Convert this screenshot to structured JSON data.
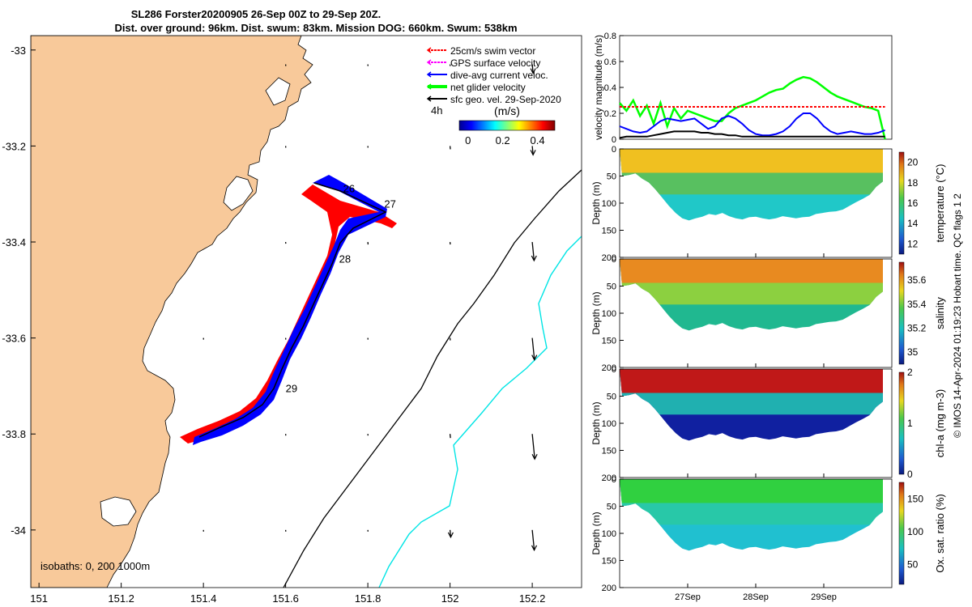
{
  "header": {
    "title_line1": "SL286 Forster20200905 26-Sep 00Z to 29-Sep 20Z.",
    "title_line2": "Dist. over ground: 96km. Dist. swum: 83km. Mission DOG: 660km. Swum: 538km"
  },
  "footer_note": "© IMOS 14-Apr-2024 01:19:23 Hobart time. QC flags 1  2",
  "map": {
    "xticks": [
      "151",
      "151.2",
      "151.4",
      "151.6",
      "151.8",
      "152",
      "152.2"
    ],
    "yticks": [
      "-33",
      "-33.2",
      "-33.4",
      "-33.6",
      "-33.8",
      "-34"
    ],
    "xlim": [
      150.98,
      152.32
    ],
    "ylim": [
      -34.12,
      -32.97
    ],
    "isobath_label": "isobaths: 0, 200  1000m",
    "time_marker": "4h",
    "day_labels": [
      {
        "text": "26",
        "lon": 151.74,
        "lat": -33.296
      },
      {
        "text": "27",
        "lon": 151.84,
        "lat": -33.328
      },
      {
        "text": "28",
        "lon": 151.73,
        "lat": -33.443
      },
      {
        "text": "29",
        "lon": 151.6,
        "lat": -33.713
      }
    ],
    "legend": [
      {
        "label": "25cm/s swim vector",
        "color": "#ff0000"
      },
      {
        "label": "GPS surface velocity",
        "color": "#ff00ff"
      },
      {
        "label": "dive-avg current veloc.",
        "color": "#0000ff"
      },
      {
        "label": "net glider velocity",
        "color": "#00ff00"
      },
      {
        "label": "sfc geo. vel. 29-Sep-2020",
        "color": "#000000"
      }
    ],
    "colorbar": {
      "label": "(m/s)",
      "ticks": [
        "0",
        "0.2",
        "0.4"
      ],
      "range": [
        -0.05,
        0.5
      ]
    },
    "colors": {
      "land": "#f8c99a",
      "track_blue": "#0000ff",
      "track_red": "#ff0000",
      "isobath_200": "#000000",
      "isobath_1000": "#00e5e5"
    }
  },
  "chart_data": [
    {
      "type": "line",
      "ylabel": "velocity magnitude (m/s)",
      "ylim": [
        0,
        0.8
      ],
      "yticks": [
        "0",
        "0.2",
        "0.4",
        "0.6",
        "0.8"
      ],
      "x_days": [
        0,
        0.1,
        0.2,
        0.3,
        0.4,
        0.5,
        0.6,
        0.7,
        0.8,
        0.9,
        1.0,
        1.1,
        1.2,
        1.3,
        1.4,
        1.5,
        1.6,
        1.7,
        1.8,
        1.9,
        2.0,
        2.1,
        2.2,
        2.3,
        2.4,
        2.5,
        2.6,
        2.7,
        2.8,
        2.9,
        3.0,
        3.1,
        3.2,
        3.3,
        3.4,
        3.5,
        3.6,
        3.7,
        3.8,
        3.9
      ],
      "series": [
        {
          "name": "net glider velocity",
          "color": "#00ff00",
          "values": [
            0.28,
            0.22,
            0.3,
            0.18,
            0.26,
            0.12,
            0.28,
            0.1,
            0.24,
            0.16,
            0.22,
            0.2,
            0.18,
            0.16,
            0.14,
            0.14,
            0.2,
            0.24,
            0.26,
            0.28,
            0.3,
            0.33,
            0.36,
            0.38,
            0.39,
            0.43,
            0.46,
            0.48,
            0.47,
            0.44,
            0.4,
            0.36,
            0.33,
            0.31,
            0.29,
            0.27,
            0.25,
            0.24,
            0.22,
            0.0
          ]
        },
        {
          "name": "25cm/s swim vector",
          "color": "#ff0000",
          "values": [
            0.25,
            0.25,
            0.25,
            0.25,
            0.25,
            0.25,
            0.25,
            0.25,
            0.25,
            0.25,
            0.25,
            0.25,
            0.25,
            0.25,
            0.25,
            0.25,
            0.25,
            0.25,
            0.25,
            0.25,
            0.25,
            0.25,
            0.25,
            0.25,
            0.25,
            0.25,
            0.25,
            0.25,
            0.25,
            0.25,
            0.25,
            0.25,
            0.25,
            0.25,
            0.25,
            0.25,
            0.25,
            0.25,
            0.25,
            0.25
          ]
        },
        {
          "name": "dive-avg current veloc.",
          "color": "#0000ff",
          "values": [
            0.1,
            0.08,
            0.06,
            0.05,
            0.06,
            0.1,
            0.14,
            0.16,
            0.15,
            0.14,
            0.15,
            0.16,
            0.12,
            0.08,
            0.1,
            0.16,
            0.18,
            0.16,
            0.12,
            0.07,
            0.04,
            0.03,
            0.03,
            0.04,
            0.06,
            0.1,
            0.16,
            0.2,
            0.2,
            0.16,
            0.1,
            0.06,
            0.04,
            0.05,
            0.06,
            0.05,
            0.04,
            0.04,
            0.05,
            0.07
          ]
        },
        {
          "name": "sfc geo. vel. 29-Sep-2020",
          "color": "#000000",
          "values": [
            0.01,
            0.02,
            0.02,
            0.02,
            0.02,
            0.03,
            0.04,
            0.05,
            0.06,
            0.06,
            0.06,
            0.06,
            0.05,
            0.05,
            0.04,
            0.04,
            0.03,
            0.03,
            0.02,
            0.02,
            0.02,
            0.02,
            0.02,
            0.02,
            0.02,
            0.02,
            0.02,
            0.02,
            0.02,
            0.02,
            0.02,
            0.02,
            0.02,
            0.02,
            0.02,
            0.02,
            0.02,
            0.02,
            0.02,
            0.02
          ]
        }
      ]
    },
    {
      "type": "heatmap",
      "ylabel": "Depth (m)",
      "xticks": [
        "27Sep",
        "28Sep",
        "29Sep"
      ],
      "variables": [
        {
          "name": "temperature",
          "cbar_label": "temperature (°C)",
          "cbar_ticks": [
            "12",
            "14",
            "16",
            "18",
            "20"
          ],
          "crange": [
            11,
            21
          ]
        },
        {
          "name": "salinity",
          "cbar_label": "salinity",
          "cbar_ticks": [
            "35",
            "35.2",
            "35.4",
            "35.6"
          ],
          "crange": [
            34.9,
            35.75
          ]
        },
        {
          "name": "chl-a",
          "cbar_label": "chl-a (mg m-3)",
          "cbar_ticks": [
            "0",
            "1",
            "2"
          ],
          "crange": [
            0,
            2
          ]
        },
        {
          "name": "oxygen",
          "cbar_label": "Ox. sat. ratio (%)",
          "cbar_ticks": [
            "50",
            "100",
            "150"
          ],
          "crange": [
            20,
            175
          ]
        }
      ],
      "ylim": [
        0,
        200
      ],
      "yticks": [
        "0",
        "50",
        "100",
        "150",
        "200"
      ],
      "max_depth_profile": [
        50,
        48,
        45,
        55,
        62,
        75,
        90,
        105,
        118,
        128,
        132,
        128,
        125,
        120,
        122,
        118,
        124,
        128,
        130,
        126,
        125,
        128,
        130,
        128,
        124,
        126,
        128,
        126,
        125,
        120,
        118,
        116,
        115,
        112,
        105,
        98,
        92,
        85,
        70,
        60
      ]
    }
  ]
}
